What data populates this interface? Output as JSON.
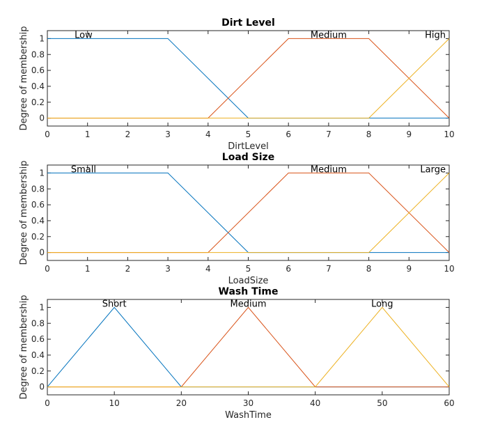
{
  "chart_data": [
    {
      "type": "line",
      "title": "Dirt Level",
      "xlabel": "DirtLevel",
      "ylabel": "Degree of membership",
      "xlim": [
        0,
        10
      ],
      "ylim": [
        -0.1,
        1.1
      ],
      "xticks": [
        "0",
        "1",
        "2",
        "3",
        "4",
        "5",
        "6",
        "7",
        "8",
        "9",
        "10"
      ],
      "yticks": [
        "0",
        "0.2",
        "0.4",
        "0.6",
        "0.8",
        "1"
      ],
      "series": [
        {
          "name": "Low",
          "color": "#0072bd",
          "x": [
            0,
            3,
            5,
            10
          ],
          "y": [
            1,
            1,
            0,
            0
          ]
        },
        {
          "name": "Medium",
          "color": "#d95319",
          "x": [
            0,
            4,
            6,
            8,
            10
          ],
          "y": [
            0,
            0,
            1,
            1,
            0
          ]
        },
        {
          "name": "High",
          "color": "#edb120",
          "x": [
            0,
            8,
            10
          ],
          "y": [
            0,
            0,
            1
          ]
        }
      ]
    },
    {
      "type": "line",
      "title": "Load Size",
      "xlabel": "LoadSize",
      "ylabel": "Degree of membership",
      "xlim": [
        0,
        10
      ],
      "ylim": [
        -0.1,
        1.1
      ],
      "xticks": [
        "0",
        "1",
        "2",
        "3",
        "4",
        "5",
        "6",
        "7",
        "8",
        "9",
        "10"
      ],
      "yticks": [
        "0",
        "0.2",
        "0.4",
        "0.6",
        "0.8",
        "1"
      ],
      "series": [
        {
          "name": "Small",
          "color": "#0072bd",
          "x": [
            0,
            3,
            5,
            10
          ],
          "y": [
            1,
            1,
            0,
            0
          ]
        },
        {
          "name": "Medium",
          "color": "#d95319",
          "x": [
            0,
            4,
            6,
            8,
            10
          ],
          "y": [
            0,
            0,
            1,
            1,
            0
          ]
        },
        {
          "name": "Large",
          "color": "#edb120",
          "x": [
            0,
            8,
            10
          ],
          "y": [
            0,
            0,
            1
          ]
        }
      ]
    },
    {
      "type": "line",
      "title": "Wash Time",
      "xlabel": "WashTime",
      "ylabel": "Degree of membership",
      "xlim": [
        0,
        60
      ],
      "ylim": [
        -0.1,
        1.1
      ],
      "xticks": [
        "0",
        "10",
        "20",
        "30",
        "40",
        "50",
        "60"
      ],
      "yticks": [
        "0",
        "0.2",
        "0.4",
        "0.6",
        "0.8",
        "1"
      ],
      "series": [
        {
          "name": "Short",
          "color": "#0072bd",
          "x": [
            0,
            10,
            20,
            60
          ],
          "y": [
            0,
            1,
            0,
            0
          ]
        },
        {
          "name": "Medium",
          "color": "#d95319",
          "x": [
            0,
            20,
            30,
            40,
            60
          ],
          "y": [
            0,
            0,
            1,
            0,
            0
          ]
        },
        {
          "name": "Long",
          "color": "#edb120",
          "x": [
            0,
            40,
            50,
            60
          ],
          "y": [
            0,
            0,
            1,
            0
          ]
        }
      ]
    }
  ]
}
